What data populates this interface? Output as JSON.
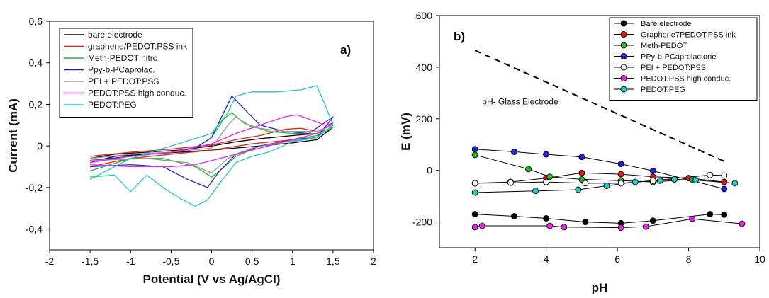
{
  "chart_data": [
    {
      "type": "line",
      "panel_label": "a)",
      "xlabel": "Potential (V vs Ag/AgCl)",
      "ylabel": "Current (mA)",
      "xlim": [
        -2,
        2
      ],
      "ylim": [
        -0.5,
        0.6
      ],
      "xticks": [
        -2,
        -1.5,
        -1,
        -0.5,
        0,
        0.5,
        1,
        1.5,
        2
      ],
      "xtick_labels": [
        "-2",
        "-1,5",
        "-1",
        "-0,5",
        "0",
        "0,5",
        "1",
        "1,5",
        "2"
      ],
      "yticks": [
        -0.4,
        -0.2,
        0,
        0.2,
        0.4,
        0.6
      ],
      "ytick_labels": [
        "-0,4",
        "-0,2",
        "0",
        "0,2",
        "0,4",
        "0,6"
      ],
      "grid": false,
      "legend_position": "top-left",
      "series": [
        {
          "name": "bare electrode",
          "color": "#000000",
          "points": [
            [
              -1.5,
              -0.06
            ],
            [
              -1.2,
              -0.04
            ],
            [
              -0.8,
              -0.03
            ],
            [
              -0.4,
              -0.02
            ],
            [
              0,
              0.0
            ],
            [
              0.3,
              0.02
            ],
            [
              0.6,
              0.035
            ],
            [
              1.0,
              0.05
            ],
            [
              1.3,
              0.06
            ],
            [
              1.5,
              0.09
            ],
            [
              1.3,
              0.03
            ],
            [
              1.0,
              0.015
            ],
            [
              0.6,
              0.0
            ],
            [
              0.3,
              -0.01
            ],
            [
              0,
              -0.02
            ],
            [
              -0.4,
              -0.03
            ],
            [
              -0.8,
              -0.04
            ],
            [
              -1.2,
              -0.05
            ],
            [
              -1.5,
              -0.08
            ]
          ]
        },
        {
          "name": "graphene/PEDOT:PSS ink",
          "color": "#e8201a",
          "points": [
            [
              -1.5,
              -0.05
            ],
            [
              -1.0,
              -0.03
            ],
            [
              -0.5,
              -0.015
            ],
            [
              0,
              0.005
            ],
            [
              0.3,
              0.03
            ],
            [
              0.6,
              0.05
            ],
            [
              0.9,
              0.08
            ],
            [
              1.1,
              0.085
            ],
            [
              1.3,
              0.07
            ],
            [
              1.5,
              0.1
            ],
            [
              1.3,
              0.04
            ],
            [
              1.0,
              0.03
            ],
            [
              0.5,
              0.01
            ],
            [
              0,
              -0.02
            ],
            [
              -0.5,
              -0.04
            ],
            [
              -1.0,
              -0.06
            ],
            [
              -1.5,
              -0.1
            ]
          ]
        },
        {
          "name": "Meth-PEDOT nitro",
          "color": "#22bb22",
          "points": [
            [
              -1.5,
              -0.07
            ],
            [
              -1.0,
              -0.05
            ],
            [
              -0.5,
              -0.03
            ],
            [
              -0.2,
              -0.01
            ],
            [
              0.0,
              0.04
            ],
            [
              0.15,
              0.13
            ],
            [
              0.25,
              0.16
            ],
            [
              0.4,
              0.11
            ],
            [
              0.7,
              0.07
            ],
            [
              1.0,
              0.06
            ],
            [
              1.3,
              0.06
            ],
            [
              1.5,
              0.09
            ],
            [
              1.3,
              0.05
            ],
            [
              1.0,
              0.03
            ],
            [
              0.6,
              0.0
            ],
            [
              0.3,
              -0.05
            ],
            [
              0.1,
              -0.12
            ],
            [
              0.0,
              -0.15
            ],
            [
              -0.2,
              -0.1
            ],
            [
              -0.6,
              -0.06
            ],
            [
              -1.0,
              -0.06
            ],
            [
              -1.5,
              -0.12
            ]
          ]
        },
        {
          "name": "Ppy-b-PCaprolac.",
          "color": "#2222cc",
          "points": [
            [
              -1.5,
              -0.07
            ],
            [
              -1.0,
              -0.05
            ],
            [
              -0.5,
              -0.03
            ],
            [
              -0.2,
              -0.01
            ],
            [
              0.0,
              0.04
            ],
            [
              0.15,
              0.16
            ],
            [
              0.25,
              0.24
            ],
            [
              0.35,
              0.2
            ],
            [
              0.6,
              0.1
            ],
            [
              0.9,
              0.07
            ],
            [
              1.2,
              0.06
            ],
            [
              1.5,
              0.14
            ],
            [
              1.3,
              0.04
            ],
            [
              1.0,
              0.03
            ],
            [
              0.6,
              0.0
            ],
            [
              0.3,
              -0.04
            ],
            [
              0.1,
              -0.12
            ],
            [
              -0.05,
              -0.2
            ],
            [
              -0.3,
              -0.16
            ],
            [
              -0.6,
              -0.1
            ],
            [
              -1.0,
              -0.09
            ],
            [
              -1.5,
              -0.1
            ]
          ]
        },
        {
          "name": "PEI + PEDOT:PSS",
          "color": "#999999",
          "points": [
            [
              -1.5,
              -0.06
            ],
            [
              -1.0,
              -0.04
            ],
            [
              -0.5,
              -0.03
            ],
            [
              0,
              -0.01
            ],
            [
              0.2,
              0.1
            ],
            [
              0.3,
              0.14
            ],
            [
              0.5,
              0.09
            ],
            [
              0.9,
              0.07
            ],
            [
              1.3,
              0.07
            ],
            [
              1.5,
              0.1
            ],
            [
              1.3,
              0.04
            ],
            [
              0.9,
              0.02
            ],
            [
              0.5,
              -0.01
            ],
            [
              0.2,
              -0.06
            ],
            [
              0.0,
              -0.13
            ],
            [
              -0.3,
              -0.08
            ],
            [
              -0.8,
              -0.06
            ],
            [
              -1.5,
              -0.07
            ]
          ]
        },
        {
          "name": "PEDOT:PSS high conduc.",
          "color": "#ee22ee",
          "points": [
            [
              -1.5,
              -0.08
            ],
            [
              -1.0,
              -0.05
            ],
            [
              -0.5,
              -0.03
            ],
            [
              0,
              0.01
            ],
            [
              0.3,
              0.06
            ],
            [
              0.6,
              0.1
            ],
            [
              0.9,
              0.14
            ],
            [
              1.05,
              0.15
            ],
            [
              1.2,
              0.13
            ],
            [
              1.4,
              0.1
            ],
            [
              1.5,
              0.11
            ],
            [
              1.3,
              0.06
            ],
            [
              1.0,
              0.03
            ],
            [
              0.6,
              -0.01
            ],
            [
              0.2,
              -0.05
            ],
            [
              -0.2,
              -0.09
            ],
            [
              -0.5,
              -0.1
            ],
            [
              -1.0,
              -0.1
            ],
            [
              -1.5,
              -0.09
            ]
          ]
        },
        {
          "name": "PEDOT:PEG",
          "color": "#22c8c8",
          "points": [
            [
              -1.5,
              -0.16
            ],
            [
              -1.3,
              -0.12
            ],
            [
              -1.0,
              -0.06
            ],
            [
              -0.5,
              0.0
            ],
            [
              0,
              0.06
            ],
            [
              0.2,
              0.16
            ],
            [
              0.3,
              0.24
            ],
            [
              0.5,
              0.26
            ],
            [
              0.8,
              0.26
            ],
            [
              1.1,
              0.27
            ],
            [
              1.3,
              0.29
            ],
            [
              1.4,
              0.2
            ],
            [
              1.5,
              0.1
            ],
            [
              1.3,
              0.04
            ],
            [
              1.0,
              0.02
            ],
            [
              0.7,
              -0.03
            ],
            [
              0.5,
              -0.05
            ],
            [
              0.3,
              -0.08
            ],
            [
              0.1,
              -0.18
            ],
            [
              -0.05,
              -0.26
            ],
            [
              -0.2,
              -0.29
            ],
            [
              -0.4,
              -0.25
            ],
            [
              -0.6,
              -0.2
            ],
            [
              -0.8,
              -0.14
            ],
            [
              -1.0,
              -0.22
            ],
            [
              -1.2,
              -0.14
            ],
            [
              -1.5,
              -0.15
            ]
          ]
        }
      ]
    },
    {
      "type": "scatter",
      "panel_label": "b)",
      "xlabel": "pH",
      "ylabel": "E (mV)",
      "xlim": [
        1,
        10
      ],
      "ylim": [
        -300,
        600
      ],
      "xticks": [
        2,
        4,
        6,
        8,
        10
      ],
      "xtick_labels": [
        "2",
        "4",
        "6",
        "8",
        "10"
      ],
      "yticks": [
        -200,
        0,
        200,
        400,
        600
      ],
      "ytick_labels": [
        "-200",
        "0",
        "200",
        "400",
        "600"
      ],
      "grid": false,
      "legend_position": "top-right",
      "annotation": "pH- Glass Electrode",
      "reference_line": {
        "x": [
          2,
          9
        ],
        "y": [
          465,
          35
        ]
      },
      "series": [
        {
          "name": "Bare electrode",
          "color": "#000000",
          "x": [
            2,
            3.1,
            4,
            5.1,
            6.1,
            7,
            8.6,
            9
          ],
          "y": [
            -170,
            -178,
            -186,
            -200,
            -205,
            -195,
            -170,
            -172
          ]
        },
        {
          "name": "Graphene7PEDOT:PSS ink",
          "color": "#e01818",
          "x": [
            2,
            3,
            4,
            5,
            6.1,
            7,
            8,
            9
          ],
          "y": [
            -50,
            -45,
            -30,
            -10,
            -15,
            -25,
            -30,
            -45
          ]
        },
        {
          "name": "Meth-PEDOT",
          "color": "#22bb22",
          "x": [
            2,
            3.5,
            4.1,
            5,
            6.1,
            7,
            8.1
          ],
          "y": [
            60,
            5,
            -25,
            -35,
            -40,
            -45,
            -35
          ]
        },
        {
          "name": "PPy-b-PCaprolactone",
          "color": "#2222dd",
          "x": [
            2,
            3.1,
            4,
            5,
            6.1,
            7,
            9
          ],
          "y": [
            82,
            72,
            62,
            52,
            25,
            -2,
            -72
          ]
        },
        {
          "name": "PEI + PEDOT:PSS",
          "color": "#ffffff",
          "x": [
            2,
            3,
            4,
            5.1,
            6.1,
            7,
            8.6,
            9
          ],
          "y": [
            -50,
            -48,
            -45,
            -50,
            -50,
            -40,
            -18,
            -20
          ]
        },
        {
          "name": "PEDOT:PSS high conduc.",
          "color": "#ee22ee",
          "x": [
            2,
            2.2,
            4.1,
            4.5,
            6.1,
            6.8,
            8.1,
            9.5
          ],
          "y": [
            -220,
            -215,
            -215,
            -220,
            -222,
            -218,
            -188,
            -207
          ]
        },
        {
          "name": "PEDOT:PEG",
          "color": "#22cccc",
          "x": [
            2,
            3.7,
            4.9,
            5.7,
            6.5,
            7.2,
            7.6,
            8.2,
            9.3
          ],
          "y": [
            -86,
            -80,
            -75,
            -60,
            -45,
            -40,
            -35,
            -38,
            -50
          ]
        }
      ]
    }
  ]
}
